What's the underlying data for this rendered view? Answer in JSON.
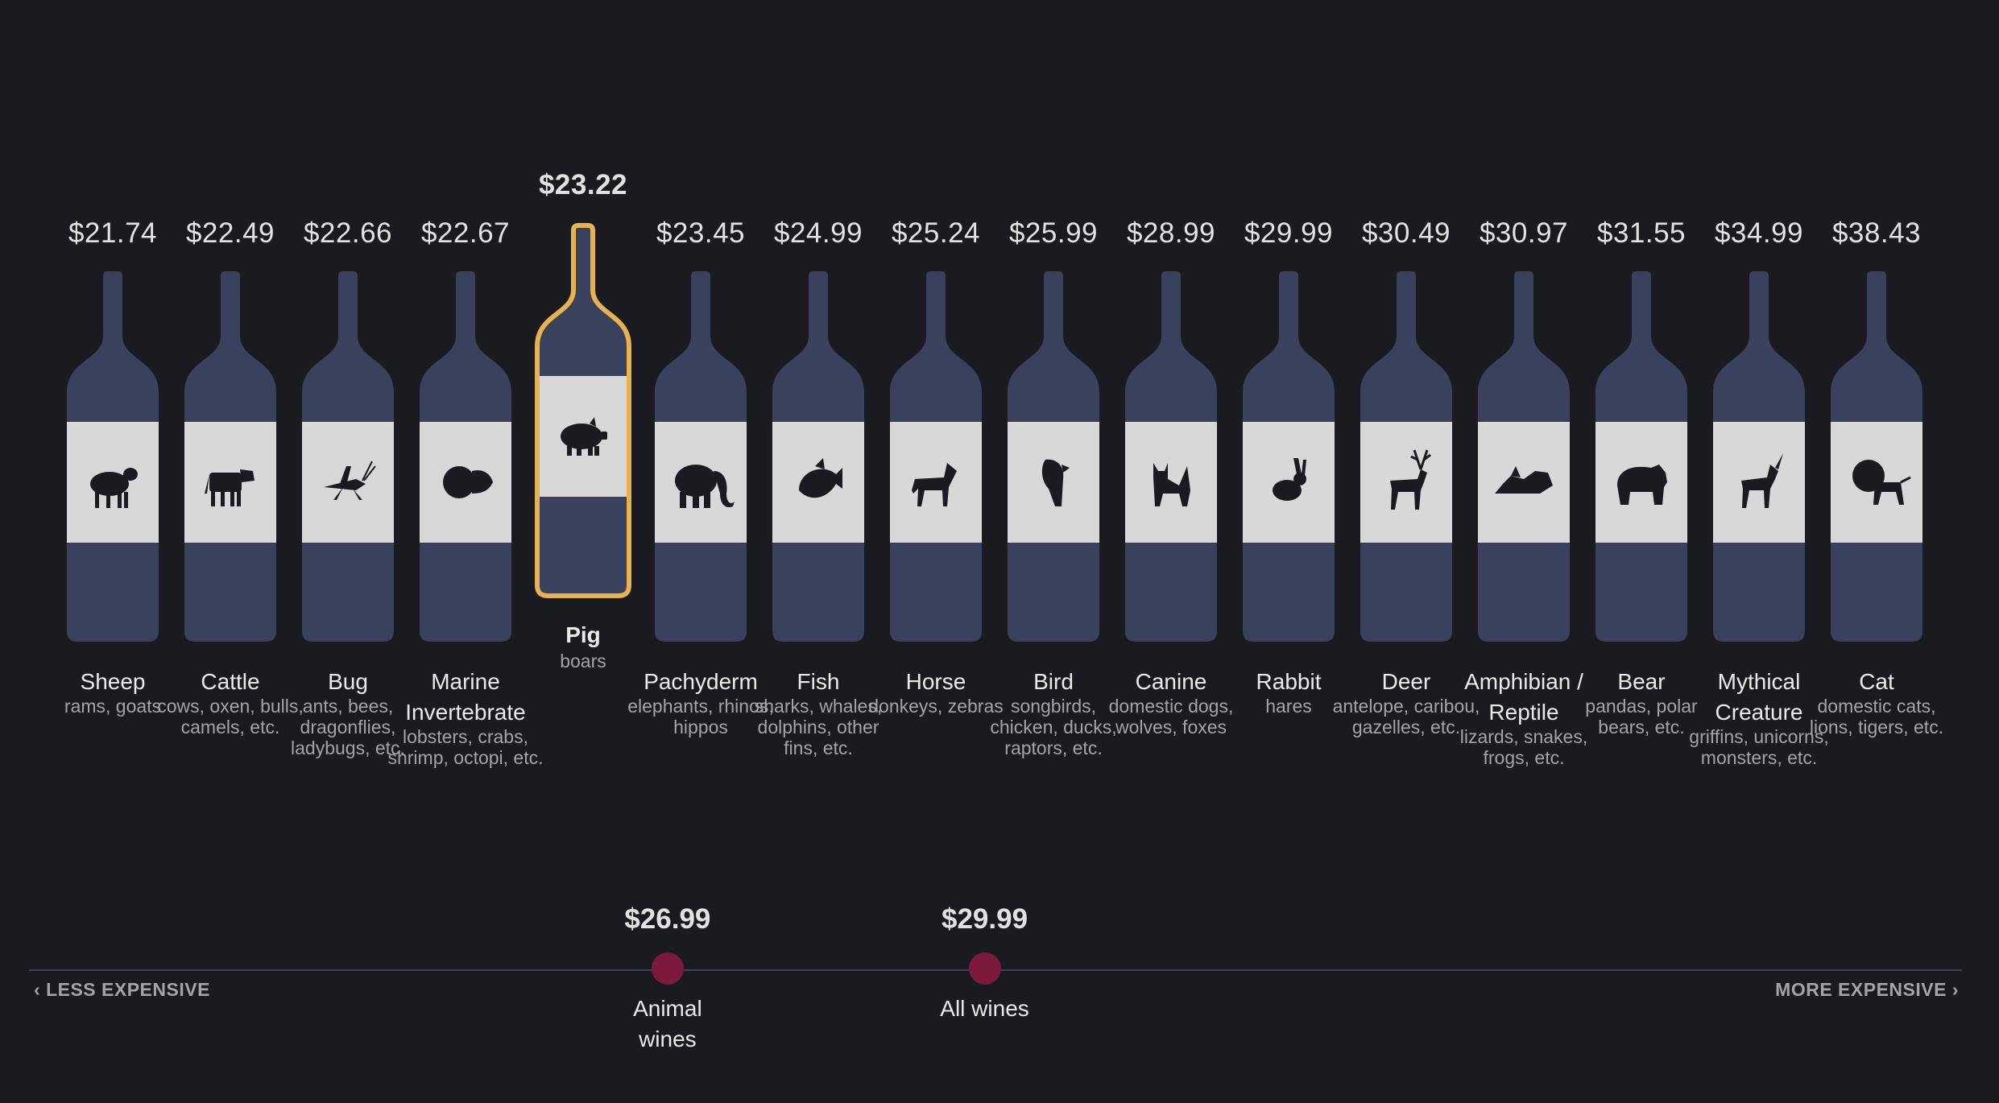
{
  "colors": {
    "background": "#1a1b20",
    "bottle": "#3a415c",
    "label": "#d8d8d8",
    "highlight_outline": "#e8b24f",
    "marker": "#7b1a3c",
    "icon": "#1a1b20"
  },
  "chart_data": {
    "type": "bar",
    "categories": [
      "Sheep",
      "Cattle",
      "Bug",
      "Marine Invertebrate",
      "Pig",
      "Pachyderm",
      "Fish",
      "Horse",
      "Bird",
      "Canine",
      "Rabbit",
      "Deer",
      "Amphibian / Reptile",
      "Bear",
      "Mythical Creature",
      "Cat"
    ],
    "values": [
      21.74,
      22.49,
      22.66,
      22.67,
      23.22,
      23.45,
      24.99,
      25.24,
      25.99,
      28.99,
      29.99,
      30.49,
      30.97,
      31.55,
      34.99,
      38.43
    ],
    "highlighted": "Pig",
    "items": [
      {
        "name": "Sheep",
        "price": "$21.74",
        "desc": "rams, goats",
        "icon": "sheep-icon"
      },
      {
        "name": "Cattle",
        "price": "$22.49",
        "desc": "cows, oxen, bulls, camels, etc.",
        "icon": "cow-icon"
      },
      {
        "name": "Bug",
        "price": "$22.66",
        "desc": "ants, bees, dragonflies, ladybugs, etc.",
        "icon": "grasshopper-icon"
      },
      {
        "name": "Marine Invertebrate",
        "price": "$22.67",
        "desc": "lobsters, crabs, shrimp, octopi, etc.",
        "icon": "nautilus-icon"
      },
      {
        "name": "Pig",
        "price": "$23.22",
        "desc": "boars",
        "icon": "pig-icon"
      },
      {
        "name": "Pachyderm",
        "price": "$23.45",
        "desc": "elephants, rhinos, hippos",
        "icon": "elephant-icon"
      },
      {
        "name": "Fish",
        "price": "$24.99",
        "desc": "sharks, whales, dolphins, other fins, etc.",
        "icon": "fish-icon"
      },
      {
        "name": "Horse",
        "price": "$25.24",
        "desc": "donkeys, zebras",
        "icon": "horse-icon"
      },
      {
        "name": "Bird",
        "price": "$25.99",
        "desc": "songbirds, chicken, ducks, raptors, etc.",
        "icon": "parrot-icon"
      },
      {
        "name": "Canine",
        "price": "$28.99",
        "desc": "domestic dogs, wolves, foxes",
        "icon": "dog-icon"
      },
      {
        "name": "Rabbit",
        "price": "$29.99",
        "desc": "hares",
        "icon": "rabbit-icon"
      },
      {
        "name": "Deer",
        "price": "$30.49",
        "desc": "antelope, caribou, gazelles, etc.",
        "icon": "deer-icon"
      },
      {
        "name": "Amphibian / Reptile",
        "price": "$30.97",
        "desc": "lizards, snakes, frogs, etc.",
        "icon": "lizard-icon"
      },
      {
        "name": "Bear",
        "price": "$31.55",
        "desc": "pandas, polar bears, etc.",
        "icon": "bear-icon"
      },
      {
        "name": "Mythical Creature",
        "price": "$34.99",
        "desc": "griffins, unicorns, monsters, etc.",
        "icon": "unicorn-icon"
      },
      {
        "name": "Cat",
        "price": "$38.43",
        "desc": "domestic cats, lions, tigers, etc.",
        "icon": "lion-icon"
      }
    ],
    "axis": {
      "left_label": "LESS EXPENSIVE",
      "right_label": "MORE EXPENSIVE",
      "min": 21.74,
      "max": 38.43
    },
    "markers": [
      {
        "label": "Animal wines",
        "value": 26.99,
        "value_label": "$26.99"
      },
      {
        "label": "All wines",
        "value": 29.99,
        "value_label": "$29.99"
      }
    ]
  }
}
